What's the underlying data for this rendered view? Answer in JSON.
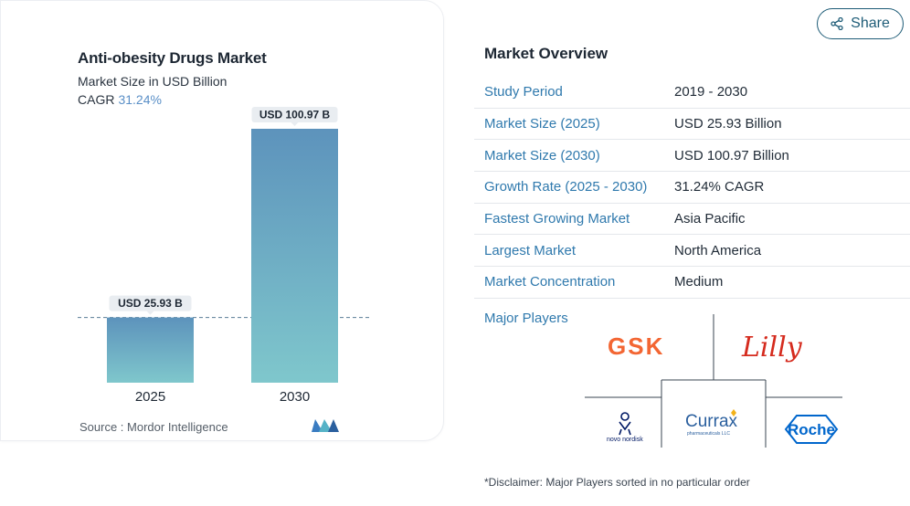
{
  "chart": {
    "title": "Anti-obesity Drugs Market",
    "subtitle": "Market Size in USD Billion",
    "cagr_label": "CAGR",
    "cagr_value": "31.24%",
    "source": "Source :  Mordor Intelligence"
  },
  "chart_data": {
    "type": "bar",
    "categories": [
      "2025",
      "2030"
    ],
    "values": [
      25.93,
      100.97
    ],
    "data_labels": [
      "USD 25.93 B",
      "USD 100.97 B"
    ],
    "title": "Anti-obesity Drugs Market",
    "subtitle": "Market Size in USD Billion",
    "xlabel": "",
    "ylabel": "",
    "ylim": [
      0,
      100.97
    ],
    "grid": false,
    "colors": [
      "#5d93bc",
      "#7fc7cc"
    ]
  },
  "share": {
    "label": "Share"
  },
  "overview": {
    "title": "Market Overview",
    "rows": [
      {
        "label": "Study Period",
        "value": "2019 - 2030"
      },
      {
        "label": "Market Size (2025)",
        "value": "USD 25.93 Billion"
      },
      {
        "label": "Market Size (2030)",
        "value": "USD 100.97 Billion"
      },
      {
        "label": "Growth Rate (2025 - 2030)",
        "value": "31.24% CAGR"
      },
      {
        "label": "Fastest Growing Market",
        "value": "Asia Pacific"
      },
      {
        "label": "Largest Market",
        "value": "North America"
      },
      {
        "label": "Market Concentration",
        "value": "Medium"
      }
    ],
    "players_label": "Major Players",
    "players": {
      "gsk": "GSK",
      "lilly": "Lilly",
      "novo": "novo nordisk",
      "currax": "Currax",
      "currax_sub": "pharmaceuticals LLC",
      "roche": "Roche"
    }
  },
  "disclaimer": "*Disclaimer: Major Players sorted in no particular order",
  "colors": {
    "accent": "#2f79ad",
    "gsk": "#f36633",
    "lilly": "#d52b1e",
    "roche": "#0066cc",
    "novo": "#001965"
  }
}
